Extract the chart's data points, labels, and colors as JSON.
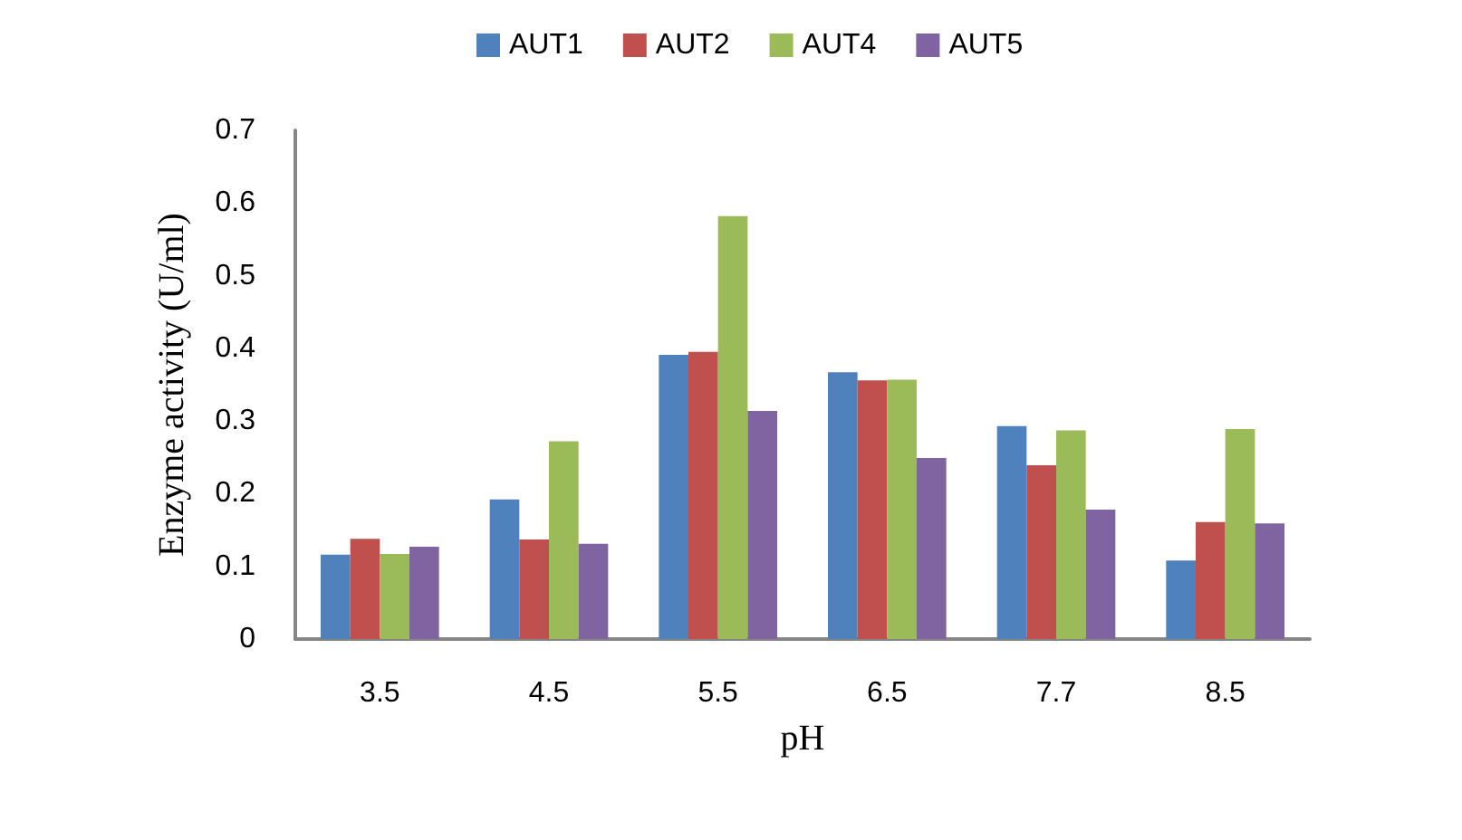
{
  "chart_data": {
    "type": "bar",
    "xlabel": "pH",
    "ylabel": "Enzyme activity (U/ml)",
    "categories": [
      "3.5",
      "4.5",
      "5.5",
      "6.5",
      "7.7",
      "8.5"
    ],
    "series": [
      {
        "name": "AUT1",
        "color": "#4f81bd",
        "values": [
          0.116,
          0.192,
          0.391,
          0.367,
          0.293,
          0.108
        ]
      },
      {
        "name": "AUT2",
        "color": "#c0504d",
        "values": [
          0.138,
          0.137,
          0.395,
          0.356,
          0.239,
          0.161
        ]
      },
      {
        "name": "AUT4",
        "color": "#9bbb59",
        "values": [
          0.117,
          0.272,
          0.582,
          0.357,
          0.287,
          0.289
        ]
      },
      {
        "name": "AUT5",
        "color": "#8064a2",
        "values": [
          0.127,
          0.131,
          0.314,
          0.249,
          0.178,
          0.159
        ]
      }
    ],
    "ylim": [
      0,
      0.7
    ],
    "yticks": [
      0,
      0.1,
      0.2,
      0.3,
      0.4,
      0.5,
      0.6,
      0.7
    ],
    "grid": false,
    "legend": "top"
  }
}
